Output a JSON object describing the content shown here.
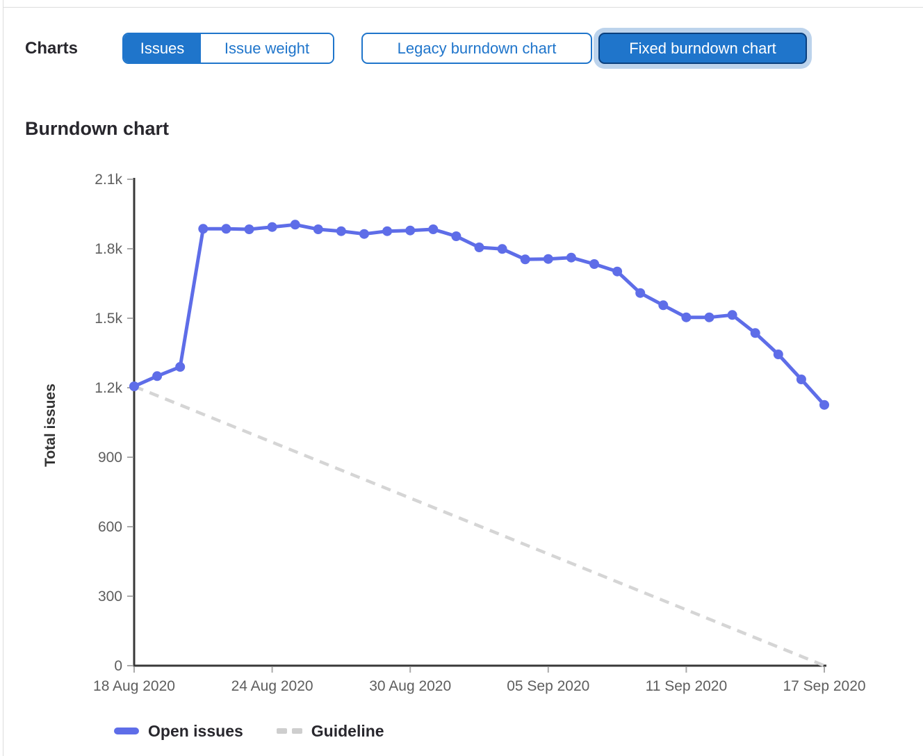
{
  "toolbar": {
    "charts_label": "Charts",
    "issues_button": "Issues",
    "issue_weight_button": "Issue weight",
    "legacy_button": "Legacy burndown chart",
    "fixed_button": "Fixed burndown chart"
  },
  "section": {
    "title": "Burndown chart"
  },
  "colors": {
    "accent_blue": "#1f75cb",
    "selected_border_blue": "#0a3f7d",
    "focus_halo_blue": "#bcd3ec",
    "open_issues_line": "#5e6de8",
    "guideline_gray": "#d5d5d5",
    "axis_line": "#383838",
    "tick_mark": "#aaaaaa",
    "tick_label": "#5e5e5e",
    "text_dark": "#28272d"
  },
  "chart_data": {
    "type": "line",
    "title": "Burndown chart",
    "xlabel": "",
    "ylabel": "Total issues",
    "ylim": [
      0,
      2100
    ],
    "grid": false,
    "legend_position": "bottom",
    "categories": [
      "18 Aug 2020",
      "19 Aug 2020",
      "20 Aug 2020",
      "21 Aug 2020",
      "22 Aug 2020",
      "23 Aug 2020",
      "24 Aug 2020",
      "25 Aug 2020",
      "26 Aug 2020",
      "27 Aug 2020",
      "28 Aug 2020",
      "29 Aug 2020",
      "30 Aug 2020",
      "31 Aug 2020",
      "01 Sep 2020",
      "02 Sep 2020",
      "03 Sep 2020",
      "04 Sep 2020",
      "05 Sep 2020",
      "06 Sep 2020",
      "07 Sep 2020",
      "08 Sep 2020",
      "09 Sep 2020",
      "10 Sep 2020",
      "11 Sep 2020",
      "12 Sep 2020",
      "13 Sep 2020",
      "14 Sep 2020",
      "15 Sep 2020",
      "16 Sep 2020",
      "17 Sep 2020"
    ],
    "y_ticks": [
      {
        "value": 2100,
        "label": "2.1k"
      },
      {
        "value": 1800,
        "label": "1.8k"
      },
      {
        "value": 1500,
        "label": "1.5k"
      },
      {
        "value": 1200,
        "label": "1.2k"
      },
      {
        "value": 900,
        "label": "900"
      },
      {
        "value": 600,
        "label": "600"
      },
      {
        "value": 300,
        "label": "300"
      },
      {
        "value": 0,
        "label": "0"
      }
    ],
    "x_ticks": [
      {
        "index": 0,
        "label": "18 Aug 2020"
      },
      {
        "index": 6,
        "label": "24 Aug 2020"
      },
      {
        "index": 12,
        "label": "30 Aug 2020"
      },
      {
        "index": 18,
        "label": "05 Sep 2020"
      },
      {
        "index": 24,
        "label": "11 Sep 2020"
      },
      {
        "index": 30,
        "label": "17 Sep 2020"
      }
    ],
    "series": [
      {
        "name": "Open issues",
        "style": "solid",
        "color": "#5e6de8",
        "values": [
          1206,
          1250,
          1290,
          1886,
          1886,
          1884,
          1894,
          1904,
          1884,
          1876,
          1864,
          1876,
          1879,
          1884,
          1854,
          1806,
          1799,
          1754,
          1756,
          1762,
          1734,
          1702,
          1609,
          1556,
          1504,
          1504,
          1514,
          1436,
          1344,
          1236,
          1126
        ]
      },
      {
        "name": "Guideline",
        "style": "dashed",
        "color": "#d5d5d5",
        "points": [
          {
            "category": "18 Aug 2020",
            "value": 1206
          },
          {
            "category": "17 Sep 2020",
            "value": 0
          }
        ]
      }
    ]
  }
}
